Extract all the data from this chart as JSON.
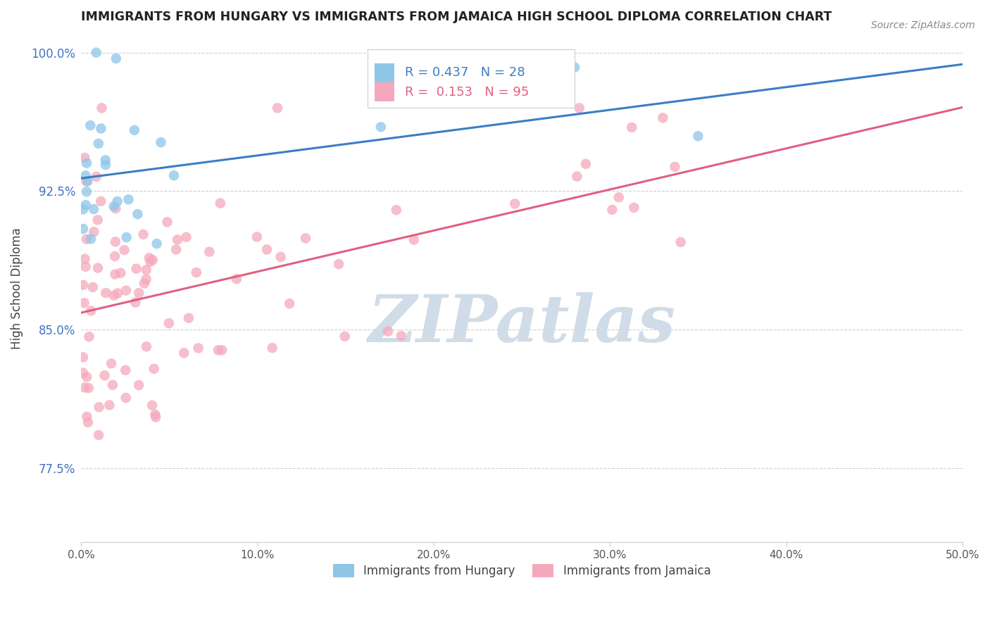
{
  "title": "IMMIGRANTS FROM HUNGARY VS IMMIGRANTS FROM JAMAICA HIGH SCHOOL DIPLOMA CORRELATION CHART",
  "source_text": "Source: ZipAtlas.com",
  "ylabel": "High School Diploma",
  "xlim": [
    0.0,
    0.5
  ],
  "ylim": [
    0.735,
    1.01
  ],
  "yticks": [
    0.775,
    0.85,
    0.925,
    1.0
  ],
  "ytick_labels": [
    "77.5%",
    "85.0%",
    "92.5%",
    "100.0%"
  ],
  "xticks": [
    0.0,
    0.1,
    0.2,
    0.3,
    0.4,
    0.5
  ],
  "xtick_labels": [
    "0.0%",
    "10.0%",
    "20.0%",
    "30.0%",
    "40.0%",
    "50.0%"
  ],
  "hungary_R": 0.437,
  "hungary_N": 28,
  "jamaica_R": 0.153,
  "jamaica_N": 95,
  "hungary_color": "#8ec6e8",
  "jamaica_color": "#f5a8bc",
  "hungary_line_color": "#3a7ec6",
  "jamaica_line_color": "#e06080",
  "legend_label_hungary": "Immigrants from Hungary",
  "legend_label_jamaica": "Immigrants from Jamaica",
  "watermark_text": "ZIPatlas",
  "watermark_color": "#d0dce8",
  "title_color": "#222222",
  "source_color": "#888888",
  "tick_color_y": "#4472c4",
  "tick_color_x": "#555555",
  "grid_color": "#cccccc"
}
